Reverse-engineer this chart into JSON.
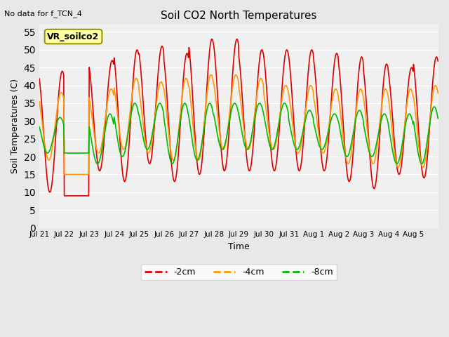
{
  "title": "Soil CO2 North Temperatures",
  "subtitle": "No data for f_TCN_4",
  "ylabel": "Soil Temperatures (C)",
  "xlabel": "Time",
  "ylim": [
    0,
    57
  ],
  "yticks": [
    0,
    5,
    10,
    15,
    20,
    25,
    30,
    35,
    40,
    45,
    50,
    55
  ],
  "num_days": 16,
  "tick_positions": [
    0,
    1,
    2,
    3,
    4,
    5,
    6,
    7,
    8,
    9,
    10,
    11,
    12,
    13,
    14,
    15
  ],
  "tick_labels": [
    "Jul 21",
    "Jul 22",
    "Jul 23",
    "Jul 24",
    "Jul 25",
    "Jul 26",
    "Jul 27",
    "Jul 28",
    "Jul 29",
    "Jul 30",
    "Jul 31",
    "Aug 1",
    "Aug 2",
    "Aug 3",
    "Aug 4",
    "Aug 5"
  ],
  "line_colors": {
    "2cm": "#dd0000",
    "4cm": "#ff9900",
    "8cm": "#00bb00"
  },
  "legend_label": "VR_soilco2",
  "legend_box_color": "#ffffaa",
  "legend_box_edge": "#999900",
  "bg_color": "#e8e8e8",
  "plot_bg_color": "#f0f0f0",
  "grid_color": "#ffffff",
  "points_per_day": 48,
  "phase_2cm": 0.42,
  "phase_4cm": 0.38,
  "phase_8cm": 0.33,
  "series": {
    "2cm": {
      "peaks": [
        44,
        9,
        47,
        50,
        51,
        49,
        53,
        53,
        50,
        50,
        50,
        49,
        48,
        46,
        45,
        48
      ],
      "troughs": [
        10,
        9,
        16,
        13,
        18,
        13,
        15,
        16,
        16,
        16,
        16,
        16,
        13,
        11,
        15,
        14
      ]
    },
    "4cm": {
      "peaks": [
        38,
        15,
        39,
        42,
        41,
        42,
        43,
        43,
        42,
        40,
        40,
        39,
        39,
        39,
        39,
        40
      ],
      "troughs": [
        19,
        15,
        21,
        22,
        21,
        19,
        19,
        22,
        22,
        22,
        21,
        21,
        18,
        18,
        17,
        17
      ]
    },
    "8cm": {
      "peaks": [
        31,
        21,
        32,
        35,
        35,
        35,
        35,
        35,
        35,
        35,
        33,
        32,
        33,
        32,
        32,
        34
      ],
      "troughs": [
        21,
        21,
        18,
        20,
        22,
        18,
        19,
        22,
        22,
        22,
        22,
        22,
        20,
        20,
        18,
        18
      ]
    }
  }
}
